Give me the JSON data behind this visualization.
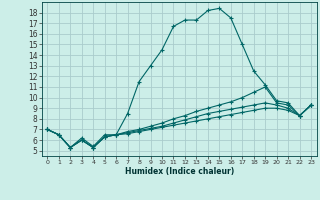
{
  "xlabel": "Humidex (Indice chaleur)",
  "background_color": "#cceee8",
  "grid_color": "#aacccc",
  "line_color": "#006666",
  "xlim": [
    -0.5,
    23.5
  ],
  "ylim": [
    4.5,
    19
  ],
  "xtick_labels": [
    "0",
    "1",
    "2",
    "3",
    "4",
    "5",
    "6",
    "7",
    "8",
    "9",
    "10",
    "11",
    "12",
    "13",
    "14",
    "15",
    "16",
    "17",
    "18",
    "19",
    "20",
    "21",
    "22",
    "23"
  ],
  "ytick_labels": [
    "5",
    "6",
    "7",
    "8",
    "9",
    "10",
    "11",
    "12",
    "13",
    "14",
    "15",
    "16",
    "17",
    "18"
  ],
  "series": [
    [
      7.0,
      6.5,
      5.3,
      6.2,
      5.4,
      6.5,
      6.5,
      8.5,
      11.5,
      13.0,
      14.5,
      16.7,
      17.3,
      17.3,
      18.2,
      18.4,
      17.5,
      15.0,
      12.5,
      11.2,
      9.7,
      9.5,
      8.3,
      9.3
    ],
    [
      7.0,
      6.5,
      5.3,
      6.0,
      5.3,
      6.3,
      6.5,
      6.8,
      7.0,
      7.3,
      7.6,
      8.0,
      8.3,
      8.7,
      9.0,
      9.3,
      9.6,
      10.0,
      10.5,
      11.0,
      9.5,
      9.3,
      8.3,
      9.3
    ],
    [
      7.0,
      6.5,
      5.3,
      6.0,
      5.3,
      6.3,
      6.5,
      6.7,
      6.9,
      7.1,
      7.3,
      7.6,
      7.9,
      8.2,
      8.5,
      8.7,
      8.9,
      9.1,
      9.3,
      9.5,
      9.3,
      9.0,
      8.3,
      9.3
    ],
    [
      7.0,
      6.5,
      5.3,
      6.0,
      5.3,
      6.3,
      6.5,
      6.6,
      6.8,
      7.0,
      7.2,
      7.4,
      7.6,
      7.8,
      8.0,
      8.2,
      8.4,
      8.6,
      8.8,
      9.0,
      9.0,
      8.8,
      8.3,
      9.3
    ]
  ]
}
